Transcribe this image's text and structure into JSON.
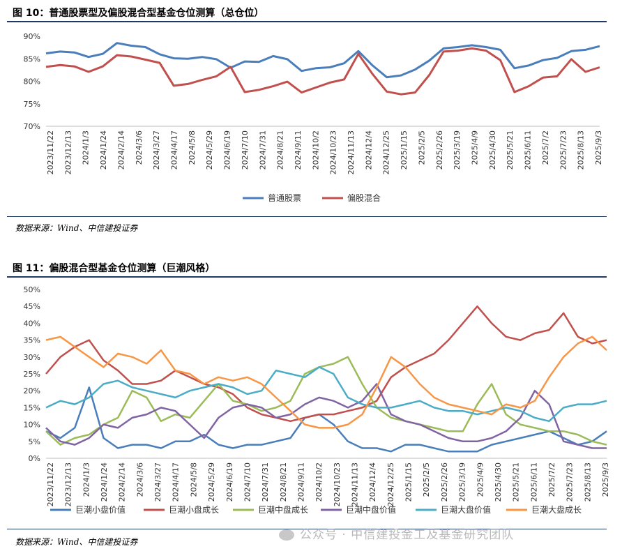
{
  "figure1": {
    "title": "图 10：普通股票型及偏股混合型基金仓位测算（总仓位）",
    "source": "数据来源：Wind、中信建投证券"
  },
  "figure2": {
    "title": "图 11：偏股混合型基金仓位测算（巨潮风格）",
    "source": "数据来源：Wind、中信建投证券"
  },
  "watermark": "公众号 · 中信建投金工及基金研究团队",
  "chart_data": [
    {
      "type": "line",
      "title": "普通股票型及偏股混合型基金仓位测算（总仓位）",
      "x_tick_labels": [
        "2023/11/22",
        "2023/12/13",
        "2024/1/3",
        "2024/1/24",
        "2024/2/14",
        "2024/3/6",
        "2024/3/27",
        "2024/4/17",
        "2024/5/8",
        "2024/5/29",
        "2024/6/19",
        "2024/7/10",
        "2024/7/31",
        "2024/8/21",
        "2024/9/11",
        "2024/10/2",
        "2024/10/23",
        "2024/11/13",
        "2024/12/4",
        "2024/12/25",
        "2025/1/15",
        "2025/2/5",
        "2025/2/26",
        "2025/3/19",
        "2025/4/9",
        "2025/4/30",
        "2025/5/21",
        "2025/6/11",
        "2025/7/2",
        "2025/7/23",
        "2025/8/13",
        "2025/9/3"
      ],
      "y_tick_labels": [
        "70%",
        "75%",
        "80%",
        "85%",
        "90%"
      ],
      "ylim": [
        70,
        90
      ],
      "legend_position": "bottom",
      "series": [
        {
          "name": "普通股票",
          "color": "#4a7ebb",
          "values": [
            86.2,
            86.6,
            86.4,
            85.4,
            86.1,
            88.5,
            87.9,
            87.6,
            86.0,
            85.1,
            85.0,
            85.4,
            84.9,
            83.0,
            84.4,
            84.3,
            85.6,
            84.9,
            82.3,
            82.9,
            83.1,
            84.0,
            86.7,
            83.5,
            80.9,
            81.3,
            82.6,
            84.6,
            87.3,
            87.6,
            88.0,
            87.6,
            87.0,
            82.9,
            83.5,
            84.7,
            85.2,
            86.7,
            87.0,
            87.8
          ]
        },
        {
          "name": "偏股混合",
          "color": "#c0504d",
          "values": [
            83.2,
            83.6,
            83.3,
            82.1,
            83.3,
            85.8,
            85.5,
            84.8,
            84.1,
            79.0,
            79.4,
            80.3,
            81.1,
            83.2,
            77.6,
            78.1,
            78.9,
            79.9,
            77.5,
            78.6,
            79.7,
            80.4,
            86.1,
            81.6,
            77.7,
            77.1,
            77.5,
            81.4,
            86.6,
            86.8,
            87.3,
            86.8,
            84.7,
            77.6,
            78.9,
            80.8,
            81.1,
            84.9,
            82.1,
            83.1
          ]
        }
      ]
    },
    {
      "type": "line",
      "title": "偏股混合型基金仓位测算（巨潮风格）",
      "x_tick_labels": [
        "2023/11/22",
        "2023/12/13",
        "2024/1/3",
        "2024/1/24",
        "2024/2/14",
        "2024/3/6",
        "2024/3/27",
        "2024/4/17",
        "2024/5/8",
        "2024/5/29",
        "2024/6/19",
        "2024/7/10",
        "2024/7/31",
        "2024/8/21",
        "2024/9/11",
        "2024/10/2",
        "2024/10/23",
        "2024/11/13",
        "2024/12/4",
        "2024/12/25",
        "2025/1/15",
        "2025/2/5",
        "2025/2/26",
        "2025/3/19",
        "2025/4/9",
        "2025/4/30",
        "2025/5/21",
        "2025/6/11",
        "2025/7/2",
        "2025/7/23",
        "2025/8/13",
        "2025/9/3"
      ],
      "y_tick_labels": [
        "0%",
        "5%",
        "10%",
        "15%",
        "20%",
        "25%",
        "30%",
        "35%",
        "40%",
        "45%",
        "50%"
      ],
      "ylim": [
        0,
        50
      ],
      "legend_position": "bottom",
      "series": [
        {
          "name": "巨潮小盘价值",
          "color": "#4a7ebb",
          "values": [
            8,
            6,
            9,
            21,
            6,
            3,
            4,
            4,
            3,
            5,
            5,
            7,
            4,
            3,
            4,
            4,
            5,
            6,
            12,
            13,
            10,
            5,
            3,
            3,
            2,
            4,
            4,
            3,
            2,
            2,
            2,
            4,
            5,
            6,
            7,
            8,
            6,
            4,
            5,
            8
          ]
        },
        {
          "name": "巨潮小盘成长",
          "color": "#c0504d",
          "values": [
            25,
            30,
            33,
            35,
            29,
            26,
            22,
            22,
            23,
            26,
            24,
            22,
            21,
            19,
            15,
            13,
            12,
            11,
            12,
            13,
            13,
            14,
            15,
            17,
            24,
            27,
            29,
            31,
            35,
            40,
            45,
            40,
            36,
            35,
            37,
            38,
            43,
            36,
            34,
            35
          ]
        },
        {
          "name": "巨潮中盘成长",
          "color": "#9bbb59",
          "values": [
            8,
            4,
            6,
            7,
            10,
            12,
            20,
            18,
            11,
            13,
            12,
            17,
            22,
            17,
            16,
            14,
            15,
            17,
            25,
            27,
            28,
            30,
            22,
            15,
            12,
            11,
            10,
            9,
            8,
            8,
            16,
            22,
            13,
            10,
            9,
            8,
            8,
            7,
            5,
            4
          ]
        },
        {
          "name": "巨潮中盘价值",
          "color": "#8064a2",
          "values": [
            9,
            5,
            4,
            6,
            10,
            9,
            12,
            13,
            15,
            14,
            10,
            6,
            12,
            15,
            16,
            15,
            12,
            13,
            16,
            18,
            17,
            15,
            17,
            22,
            13,
            11,
            10,
            8,
            6,
            5,
            5,
            6,
            8,
            12,
            20,
            16,
            5,
            4,
            3,
            3
          ]
        },
        {
          "name": "巨潮大盘价值",
          "color": "#4bacc6",
          "values": [
            15,
            17,
            16,
            18,
            22,
            23,
            21,
            20,
            19,
            18,
            20,
            21,
            22,
            21,
            19,
            20,
            26,
            25,
            24,
            27,
            25,
            18,
            16,
            15,
            15,
            16,
            17,
            15,
            14,
            14,
            13,
            14,
            15,
            14,
            12,
            11,
            15,
            16,
            16,
            17
          ]
        },
        {
          "name": "巨潮大盘成长",
          "color": "#f79646",
          "values": [
            35,
            36,
            33,
            30,
            27,
            31,
            30,
            28,
            32,
            26,
            25,
            22,
            24,
            23,
            24,
            22,
            18,
            14,
            10,
            9,
            9,
            10,
            13,
            21,
            30,
            27,
            22,
            18,
            16,
            15,
            14,
            13,
            16,
            15,
            17,
            24,
            30,
            34,
            36,
            32
          ]
        }
      ]
    }
  ]
}
